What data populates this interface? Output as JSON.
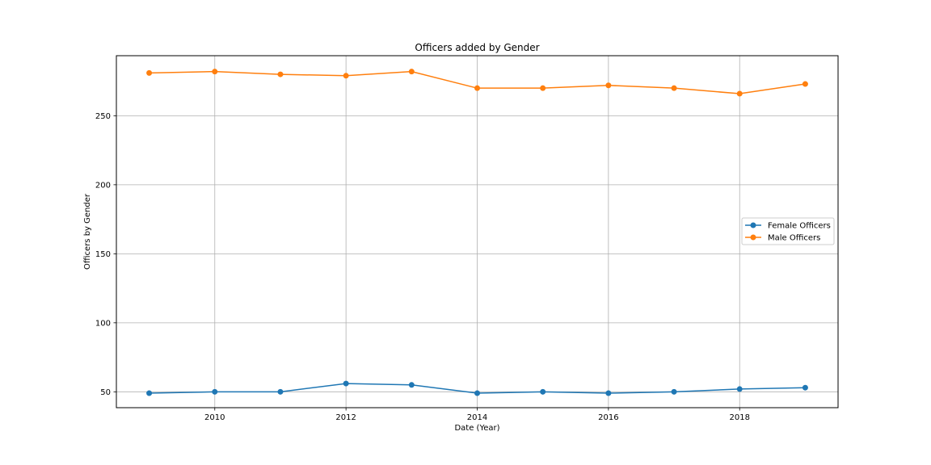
{
  "chart_data": {
    "type": "line",
    "title": "Officers added by Gender",
    "xlabel": "Date (Year)",
    "ylabel": "Officers by Gender",
    "x": [
      2009,
      2010,
      2011,
      2012,
      2013,
      2014,
      2015,
      2016,
      2017,
      2018,
      2019
    ],
    "xlim": [
      2008.5,
      2019.5
    ],
    "ylim": [
      38.5,
      293.5
    ],
    "xticks": [
      2010,
      2012,
      2014,
      2016,
      2018
    ],
    "yticks": [
      50,
      100,
      150,
      200,
      250
    ],
    "grid": true,
    "legend": "center-right",
    "series": [
      {
        "name": "Female Officers",
        "color": "#1f77b4",
        "values": [
          49,
          50,
          50,
          56,
          55,
          49,
          50,
          49,
          50,
          52,
          53
        ]
      },
      {
        "name": "Male Officers",
        "color": "#ff7f0e",
        "values": [
          281,
          282,
          280,
          279,
          282,
          270,
          270,
          272,
          270,
          266,
          273
        ]
      }
    ]
  }
}
